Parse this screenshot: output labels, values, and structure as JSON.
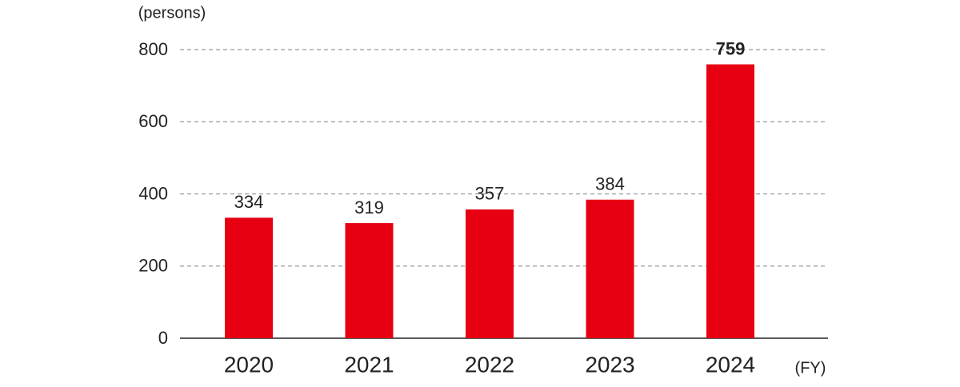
{
  "chart_data": {
    "type": "bar",
    "y_label": "(persons)",
    "x_label": "(FY)",
    "categories": [
      "2020",
      "2021",
      "2022",
      "2023",
      "2024"
    ],
    "values": [
      334,
      319,
      357,
      384,
      759
    ],
    "color": "#e60012",
    "ylim": [
      0,
      800
    ],
    "yticks": [
      0,
      200,
      400,
      600,
      800
    ],
    "grid": true
  }
}
